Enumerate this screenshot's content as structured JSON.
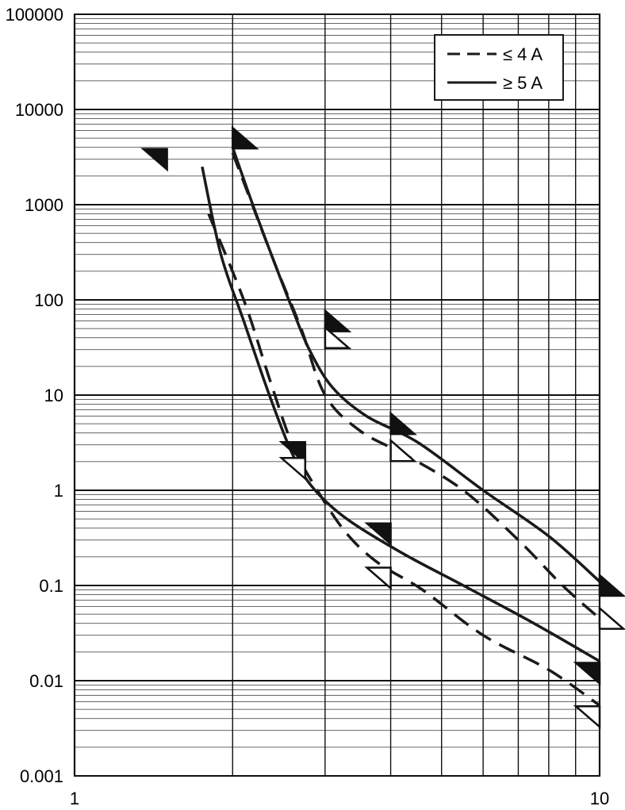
{
  "chart_data": {
    "type": "line",
    "title": "",
    "xlabel": "",
    "ylabel": "",
    "x_scale": "log",
    "y_scale": "log",
    "xlim": [
      1,
      10
    ],
    "ylim": [
      0.001,
      100000
    ],
    "grid": true,
    "legend_position": "top-right",
    "x_tick_labels": [
      "1",
      "10"
    ],
    "y_tick_labels": [
      "0.001",
      "0.01",
      "0.1",
      "1",
      "10",
      "100",
      "1000",
      "10000",
      "100000"
    ],
    "legend": [
      {
        "label": "≤ 4 A",
        "style": "dashed"
      },
      {
        "label": "≥ 5 A",
        "style": "solid"
      }
    ],
    "series": [
      {
        "legend": "≥ 5 A",
        "style": "solid",
        "color": "#1a1a1a",
        "points": [
          [
            1.75,
            2500
          ],
          [
            1.9,
            300
          ],
          [
            2.1,
            60
          ],
          [
            2.35,
            10
          ],
          [
            2.6,
            2.4
          ],
          [
            2.85,
            1.05
          ],
          [
            3.3,
            0.5
          ],
          [
            4.2,
            0.22
          ],
          [
            5.5,
            0.1
          ],
          [
            7.5,
            0.04
          ],
          [
            10,
            0.016
          ]
        ]
      },
      {
        "legend": "≤ 4 A",
        "style": "dashed",
        "color": "#1a1a1a",
        "points": [
          [
            1.8,
            800
          ],
          [
            2.1,
            100
          ],
          [
            2.35,
            15
          ],
          [
            2.6,
            3.0
          ],
          [
            2.9,
            1.0
          ],
          [
            3.3,
            0.35
          ],
          [
            3.8,
            0.17
          ],
          [
            4.6,
            0.09
          ],
          [
            6.0,
            0.03
          ],
          [
            8.0,
            0.013
          ],
          [
            10,
            0.0055
          ]
        ]
      },
      {
        "legend": "≥ 5 A",
        "style": "solid",
        "color": "#1a1a1a",
        "points": [
          [
            2.0,
            4000
          ],
          [
            2.2,
            900
          ],
          [
            2.4,
            250
          ],
          [
            2.6,
            80
          ],
          [
            2.8,
            30
          ],
          [
            3.1,
            12
          ],
          [
            3.6,
            6.0
          ],
          [
            4.5,
            3.2
          ],
          [
            6.0,
            1.0
          ],
          [
            8.0,
            0.33
          ],
          [
            10,
            0.11
          ]
        ]
      },
      {
        "legend": "≤ 4 A",
        "style": "dashed",
        "color": "#1a1a1a",
        "points": [
          [
            2.0,
            3500
          ],
          [
            2.4,
            250
          ],
          [
            2.7,
            50
          ],
          [
            3.0,
            10
          ],
          [
            3.5,
            4.2
          ],
          [
            4.3,
            2.3
          ],
          [
            5.5,
            1.0
          ],
          [
            7.0,
            0.3
          ],
          [
            8.5,
            0.1
          ],
          [
            10,
            0.045
          ]
        ]
      }
    ],
    "markers": [
      {
        "x": 1.5,
        "y": 3000,
        "type": "filled",
        "dir": "left"
      },
      {
        "x": 2.0,
        "y": 5000,
        "type": "filled",
        "dir": "right"
      },
      {
        "x": 3.0,
        "y": 60,
        "type": "filled",
        "dir": "right"
      },
      {
        "x": 3.0,
        "y": 40,
        "type": "open",
        "dir": "right"
      },
      {
        "x": 2.75,
        "y": 2.5,
        "type": "filled",
        "dir": "left"
      },
      {
        "x": 2.75,
        "y": 1.7,
        "type": "open",
        "dir": "left"
      },
      {
        "x": 4.0,
        "y": 5.0,
        "type": "filled",
        "dir": "right"
      },
      {
        "x": 4.0,
        "y": 2.6,
        "type": "open",
        "dir": "right"
      },
      {
        "x": 4.0,
        "y": 0.35,
        "type": "filled",
        "dir": "left"
      },
      {
        "x": 4.0,
        "y": 0.12,
        "type": "open",
        "dir": "left"
      },
      {
        "x": 10,
        "y": 0.1,
        "type": "filled",
        "dir": "right"
      },
      {
        "x": 10,
        "y": 0.045,
        "type": "open",
        "dir": "right"
      },
      {
        "x": 10,
        "y": 0.012,
        "type": "filled",
        "dir": "left"
      },
      {
        "x": 10,
        "y": 0.0042,
        "type": "open",
        "dir": "left"
      }
    ]
  }
}
